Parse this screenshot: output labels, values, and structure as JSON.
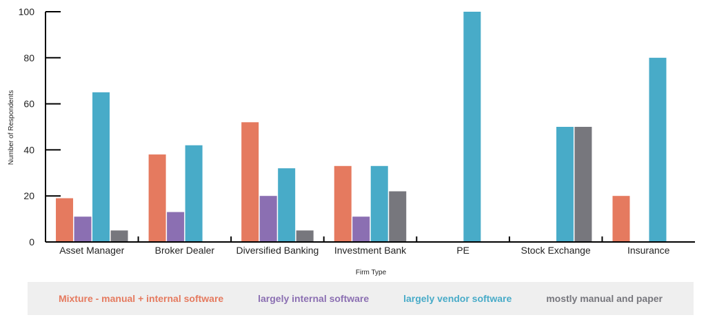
{
  "chart_data": {
    "type": "bar",
    "categories": [
      "Asset Manager",
      "Broker Dealer",
      "Diversified Banking",
      "Investment Bank",
      "PE",
      "Stock Exchange",
      "Insurance"
    ],
    "series": [
      {
        "name": "Mixture - manual + internal software",
        "color": "#e57a5f",
        "values": [
          19,
          38,
          52,
          33,
          0,
          0,
          20
        ]
      },
      {
        "name": "largely internal software",
        "color": "#8b6fb2",
        "values": [
          11,
          13,
          20,
          11,
          0,
          0,
          0
        ]
      },
      {
        "name": "largely vendor software",
        "color": "#48abc8",
        "values": [
          65,
          42,
          32,
          33,
          100,
          50,
          80
        ]
      },
      {
        "name": "mostly manual and paper",
        "color": "#77777d",
        "values": [
          5,
          0,
          5,
          22,
          0,
          50,
          0
        ]
      }
    ],
    "xlabel": "Firm Type",
    "ylabel": "Number of Respondents",
    "ylim": [
      0,
      100
    ],
    "yticks": [
      0,
      20,
      40,
      60,
      80,
      100
    ],
    "grid": false,
    "legend_position": "bottom"
  }
}
